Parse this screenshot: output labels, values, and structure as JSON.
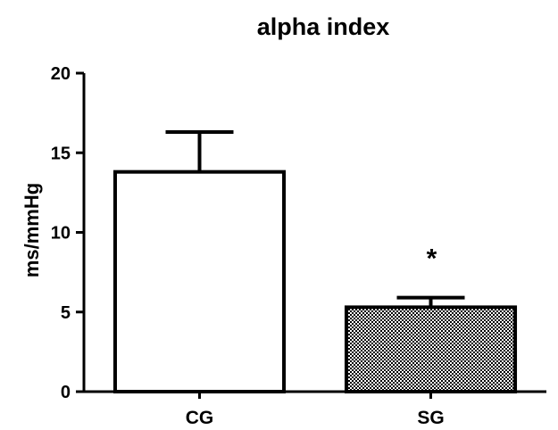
{
  "chart_data": {
    "type": "bar",
    "title": "alpha index",
    "xlabel": "",
    "ylabel": "ms/mmHg",
    "ylim": [
      0,
      20
    ],
    "yticks": [
      0,
      5,
      10,
      15,
      20
    ],
    "categories": [
      "CG",
      "SG"
    ],
    "values": [
      13.8,
      5.3
    ],
    "errors": [
      2.5,
      0.6
    ],
    "bar_fills": [
      "white",
      "checkered"
    ],
    "annotations": [
      {
        "category": "SG",
        "text": "*"
      }
    ],
    "grid": false,
    "legend": "none"
  }
}
